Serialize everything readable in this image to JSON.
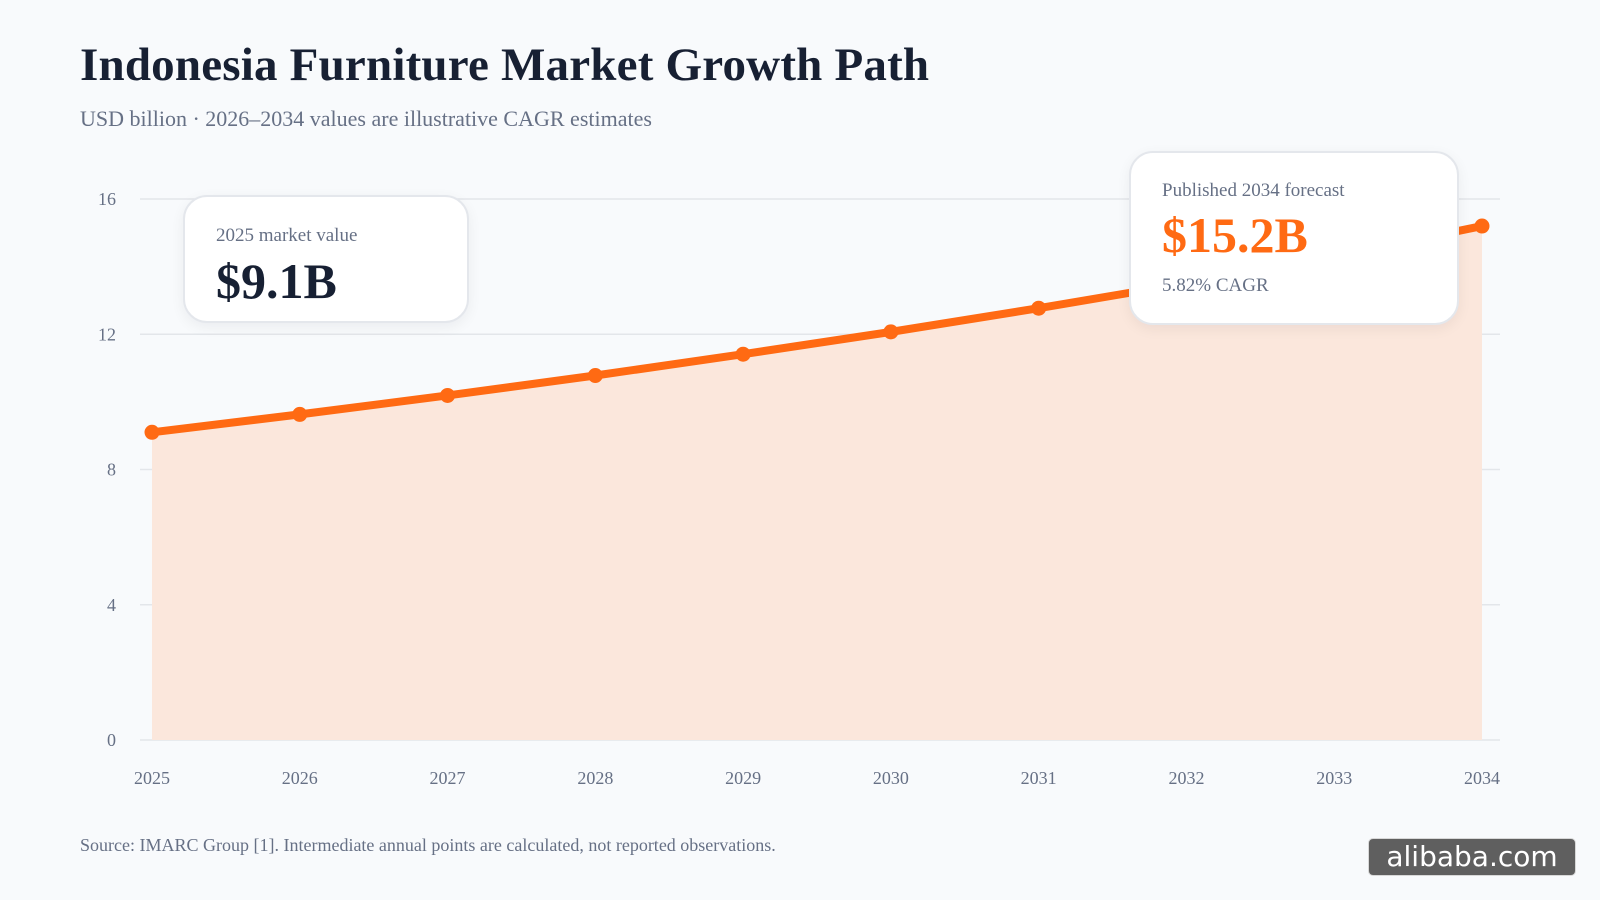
{
  "header": {
    "title": "Indonesia Furniture Market Growth Path",
    "subtitle": "USD billion · 2026–2034 values are illustrative CAGR estimates"
  },
  "chart_data": {
    "type": "area",
    "title": "Indonesia Furniture Market Growth Path",
    "subtitle": "USD billion · 2026–2034 values are illustrative CAGR estimates",
    "x": [
      "2025",
      "2026",
      "2027",
      "2028",
      "2029",
      "2030",
      "2031",
      "2032",
      "2033",
      "2034"
    ],
    "series": [
      {
        "values": [
          9.1,
          9.63,
          10.19,
          10.78,
          11.41,
          12.07,
          12.77,
          13.51,
          14.3,
          15.2
        ]
      }
    ],
    "yticks": [
      0,
      4,
      8,
      12,
      16
    ],
    "ylim": [
      0,
      16
    ],
    "grid": true,
    "colors": {
      "line": "#ff6a13",
      "fill": "#fbe7dc",
      "grid": "#e3e6ea"
    }
  },
  "annotations": {
    "start": {
      "label": "2025 market value",
      "value": "$9.1B"
    },
    "end": {
      "label": "Published 2034 forecast",
      "value": "$15.2B",
      "note": "5.82% CAGR"
    }
  },
  "footer": {
    "source": "Source: IMARC Group [1]. Intermediate annual points are calculated, not reported observations."
  },
  "watermark": {
    "text": "alibaba.com"
  }
}
